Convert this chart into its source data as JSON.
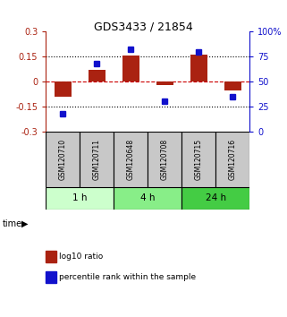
{
  "title": "GDS3433 / 21854",
  "samples": [
    "GSM120710",
    "GSM120711",
    "GSM120648",
    "GSM120708",
    "GSM120715",
    "GSM120716"
  ],
  "log10_ratio": [
    -0.09,
    0.07,
    0.155,
    -0.02,
    0.16,
    -0.055
  ],
  "percentile_rank": [
    18,
    68,
    82,
    30,
    80,
    35
  ],
  "bar_color": "#aa2211",
  "dot_color": "#1111cc",
  "ylim_left": [
    -0.3,
    0.3
  ],
  "ylim_right": [
    0,
    100
  ],
  "yticks_left": [
    -0.3,
    -0.15,
    0,
    0.15,
    0.3
  ],
  "yticks_right": [
    0,
    25,
    50,
    75,
    100
  ],
  "ytick_labels_right": [
    "0",
    "25",
    "50",
    "75",
    "100%"
  ],
  "time_groups": [
    {
      "label": "1 h",
      "start": 0,
      "end": 2,
      "color": "#ccffcc"
    },
    {
      "label": "4 h",
      "start": 2,
      "end": 4,
      "color": "#88ee88"
    },
    {
      "label": "24 h",
      "start": 4,
      "end": 6,
      "color": "#44cc44"
    }
  ],
  "legend_items": [
    {
      "label": "log10 ratio",
      "color": "#aa2211"
    },
    {
      "label": "percentile rank within the sample",
      "color": "#1111cc"
    }
  ],
  "bg_color": "#ffffff",
  "sample_box_color": "#c8c8c8",
  "bar_width": 0.5,
  "dot_size": 5
}
